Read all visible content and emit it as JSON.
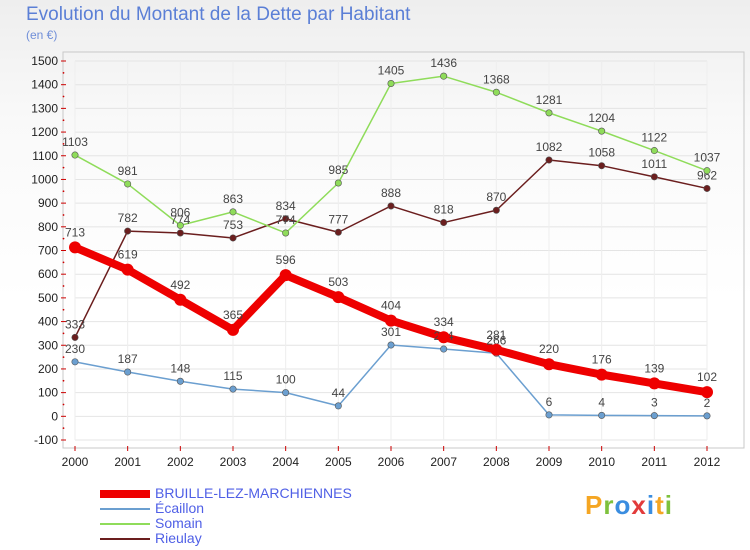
{
  "title": "Evolution du Montant de la Dette par Habitant",
  "unit": "(en €)",
  "brand": "Proxiti",
  "brand_colors": [
    "#f5a623",
    "#7ec13d",
    "#3a8de0",
    "#e23b3b",
    "#3a8de0",
    "#f5a623",
    "#7ec13d"
  ],
  "chart_data": {
    "type": "line",
    "title": "Evolution du Montant de la Dette par Habitant",
    "subtitle": "(en €)",
    "x": [
      2000,
      2001,
      2002,
      2003,
      2004,
      2005,
      2006,
      2007,
      2008,
      2009,
      2010,
      2011,
      2012
    ],
    "ylim": [
      -100,
      1500
    ],
    "yticks": [
      -100,
      0,
      100,
      200,
      300,
      400,
      500,
      600,
      700,
      800,
      900,
      1000,
      1100,
      1200,
      1300,
      1400,
      1500
    ],
    "grid": true,
    "legend_position": "bottom-left",
    "series": [
      {
        "name": "Rieulay",
        "color": "#6b1e1e",
        "values": [
          333,
          782,
          774,
          753,
          834,
          777,
          888,
          818,
          870,
          1082,
          1058,
          1011,
          962
        ]
      },
      {
        "name": "Somain",
        "color": "#8fdc5a",
        "values": [
          1103,
          981,
          806,
          863,
          774,
          985,
          1405,
          1436,
          1368,
          1281,
          1204,
          1122,
          1037
        ]
      },
      {
        "name": "Écaillon",
        "color": "#6b9fd0",
        "values": [
          230,
          187,
          148,
          115,
          100,
          44,
          301,
          284,
          266,
          6,
          4,
          3,
          2
        ]
      },
      {
        "name": "BRUILLE-LEZ-MARCHIENNES",
        "color": "#ee0000",
        "values": [
          713,
          619,
          492,
          365,
          596,
          503,
          404,
          334,
          281,
          220,
          176,
          139,
          102
        ]
      }
    ]
  },
  "legend_order": [
    "BRUILLE-LEZ-MARCHIENNES",
    "Écaillon",
    "Somain",
    "Rieulay"
  ]
}
